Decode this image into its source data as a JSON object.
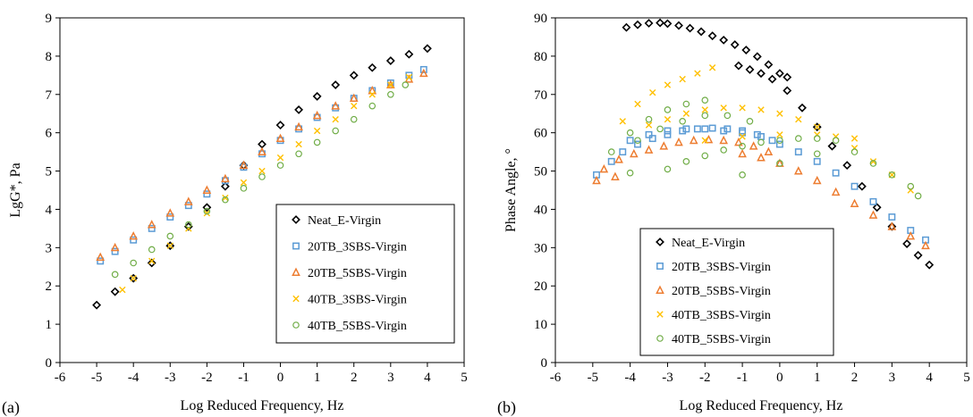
{
  "figure": {
    "background": "#ffffff",
    "series_styles": [
      {
        "name": "Neat_E-Virgin",
        "marker": "diamond",
        "color": "#000000"
      },
      {
        "name": "20TB_3SBS-Virgin",
        "marker": "square",
        "color": "#5B9BD5"
      },
      {
        "name": "20TB_5SBS-Virgin",
        "marker": "triangle",
        "color": "#ED7D31"
      },
      {
        "name": "40TB_3SBS-Virgin",
        "marker": "x",
        "color": "#FFC000"
      },
      {
        "name": "40TB_5SBS-Virgin",
        "marker": "circle",
        "color": "#70AD47"
      }
    ]
  },
  "chart_data": [
    {
      "type": "scatter",
      "panel_label": "(a)",
      "xlabel": "Log Reduced Frequency, Hz",
      "ylabel": "LgG*, Pa",
      "xlim": [
        -6,
        5
      ],
      "ylim": [
        0,
        9
      ],
      "xticks": [
        -6,
        -5,
        -4,
        -3,
        -2,
        -1,
        0,
        1,
        2,
        3,
        4,
        5
      ],
      "yticks": [
        0,
        1,
        2,
        3,
        4,
        5,
        6,
        7,
        8,
        9
      ],
      "grid": false,
      "legend_position": "bottom-right",
      "series": [
        {
          "name": "Neat_E-Virgin",
          "x": [
            -5.0,
            -4.5,
            -4.0,
            -3.5,
            -3.0,
            -2.5,
            -2.0,
            -1.5,
            -1.0,
            -0.5,
            0.0,
            0.5,
            1.0,
            1.5,
            2.0,
            2.5,
            3.0,
            3.5,
            4.0
          ],
          "y": [
            1.5,
            1.85,
            2.2,
            2.6,
            3.05,
            3.55,
            4.05,
            4.6,
            5.15,
            5.7,
            6.2,
            6.6,
            6.95,
            7.25,
            7.5,
            7.7,
            7.88,
            8.05,
            8.2
          ]
        },
        {
          "name": "20TB_3SBS-Virgin",
          "x": [
            -4.9,
            -4.5,
            -4.0,
            -3.5,
            -3.0,
            -2.5,
            -2.0,
            -1.5,
            -1.0,
            -0.5,
            0.0,
            0.5,
            1.0,
            1.5,
            2.0,
            2.5,
            3.0,
            3.5,
            3.9
          ],
          "y": [
            2.65,
            2.9,
            3.2,
            3.5,
            3.8,
            4.1,
            4.4,
            4.75,
            5.1,
            5.45,
            5.8,
            6.1,
            6.4,
            6.65,
            6.9,
            7.1,
            7.3,
            7.5,
            7.65
          ]
        },
        {
          "name": "20TB_5SBS-Virgin",
          "x": [
            -4.9,
            -4.5,
            -4.0,
            -3.5,
            -3.0,
            -2.5,
            -2.0,
            -1.5,
            -1.0,
            -0.5,
            0.0,
            0.5,
            1.0,
            1.5,
            2.0,
            2.5,
            3.0,
            3.5,
            3.9
          ],
          "y": [
            2.75,
            3.0,
            3.3,
            3.6,
            3.9,
            4.2,
            4.5,
            4.8,
            5.15,
            5.5,
            5.85,
            6.15,
            6.45,
            6.7,
            6.9,
            7.1,
            7.25,
            7.4,
            7.55
          ]
        },
        {
          "name": "40TB_3SBS-Virgin",
          "x": [
            -4.3,
            -4.0,
            -3.5,
            -3.0,
            -2.5,
            -2.0,
            -1.5,
            -1.0,
            -0.5,
            0.0,
            0.5,
            1.0,
            1.5,
            2.0,
            2.5,
            3.0,
            3.5
          ],
          "y": [
            1.9,
            2.2,
            2.65,
            3.05,
            3.5,
            3.9,
            4.3,
            4.7,
            5.0,
            5.35,
            5.7,
            6.05,
            6.35,
            6.7,
            7.0,
            7.25,
            7.45
          ]
        },
        {
          "name": "40TB_5SBS-Virgin",
          "x": [
            -4.5,
            -4.0,
            -3.5,
            -3.0,
            -2.5,
            -2.0,
            -1.5,
            -1.0,
            -0.5,
            0.0,
            0.5,
            1.0,
            1.5,
            2.0,
            2.5,
            3.0,
            3.4
          ],
          "y": [
            2.3,
            2.6,
            2.95,
            3.3,
            3.6,
            3.95,
            4.25,
            4.55,
            4.85,
            5.15,
            5.45,
            5.75,
            6.05,
            6.35,
            6.7,
            7.0,
            7.25
          ]
        }
      ]
    },
    {
      "type": "scatter",
      "panel_label": "(b)",
      "xlabel": "Log Reduced Frequency, Hz",
      "ylabel": "Phase Angle, °",
      "xlim": [
        -6,
        5
      ],
      "ylim": [
        0,
        90
      ],
      "xticks": [
        -6,
        -5,
        -4,
        -3,
        -2,
        -1,
        0,
        1,
        2,
        3,
        4,
        5
      ],
      "yticks": [
        0,
        10,
        20,
        30,
        40,
        50,
        60,
        70,
        80,
        90
      ],
      "grid": false,
      "legend_position": "bottom-left",
      "series": [
        {
          "name": "Neat_E-Virgin",
          "x": [
            -4.1,
            -3.8,
            -3.5,
            -3.2,
            -3.0,
            -2.7,
            -2.4,
            -2.1,
            -1.8,
            -1.5,
            -1.2,
            -0.9,
            -0.6,
            -0.3,
            0.0,
            0.2,
            -1.1,
            -0.8,
            -0.5,
            -0.2,
            0.2,
            0.6,
            1.0,
            1.4,
            1.8,
            2.2,
            2.6,
            3.0,
            3.4,
            3.7,
            4.0
          ],
          "y": [
            87.5,
            88.2,
            88.6,
            88.7,
            88.5,
            88.0,
            87.3,
            86.4,
            85.3,
            84.2,
            83.0,
            81.6,
            79.9,
            77.8,
            75.5,
            74.5,
            77.5,
            76.5,
            75.5,
            74.0,
            71.0,
            66.5,
            61.5,
            56.5,
            51.5,
            46.0,
            40.5,
            35.5,
            31.0,
            28.0,
            25.5
          ]
        },
        {
          "name": "20TB_3SBS-Virgin",
          "x": [
            -4.9,
            -4.5,
            -4.2,
            -3.8,
            -3.4,
            -3.0,
            -2.6,
            -2.2,
            -1.8,
            -1.4,
            -1.0,
            -0.6,
            -0.2,
            -4.0,
            -3.5,
            -3.0,
            -2.5,
            -2.0,
            -1.5,
            -1.0,
            -0.5,
            0.0,
            0.5,
            1.0,
            1.5,
            2.0,
            2.5,
            3.0,
            3.5,
            3.9
          ],
          "y": [
            49.0,
            52.5,
            55.0,
            57.0,
            58.5,
            59.5,
            60.5,
            61.0,
            61.2,
            61.0,
            60.5,
            59.5,
            58.0,
            58.0,
            59.5,
            60.5,
            61.0,
            61.0,
            60.5,
            60.0,
            59.0,
            57.0,
            55.0,
            52.5,
            49.5,
            46.0,
            42.0,
            38.0,
            34.5,
            32.0
          ]
        },
        {
          "name": "20TB_5SBS-Virgin",
          "x": [
            -4.9,
            -4.4,
            -4.7,
            -4.3,
            -3.9,
            -3.5,
            -3.1,
            -2.7,
            -2.3,
            -1.9,
            -1.5,
            -1.1,
            -0.7,
            -0.3,
            -1.0,
            -0.5,
            0.0,
            0.5,
            1.0,
            1.5,
            2.0,
            2.5,
            3.0,
            3.5,
            3.9
          ],
          "y": [
            47.5,
            48.5,
            50.5,
            53.0,
            54.5,
            55.5,
            56.5,
            57.5,
            58.0,
            58.2,
            58.0,
            57.5,
            56.5,
            55.0,
            54.5,
            53.5,
            52.0,
            50.0,
            47.5,
            44.5,
            41.5,
            38.5,
            35.5,
            33.0,
            30.5
          ]
        },
        {
          "name": "40TB_3SBS-Virgin",
          "x": [
            -4.2,
            -3.8,
            -3.4,
            -3.0,
            -2.6,
            -2.2,
            -1.8,
            -3.5,
            -3.0,
            -2.5,
            -2.0,
            -1.5,
            -1.0,
            -0.5,
            0.0,
            0.5,
            1.0,
            1.5,
            2.0,
            2.5,
            3.0,
            3.5,
            -2.0,
            -1.0,
            0.0,
            1.0,
            2.0
          ],
          "y": [
            63.0,
            67.5,
            70.5,
            72.5,
            74.0,
            75.5,
            77.0,
            62.0,
            63.5,
            65.0,
            66.0,
            66.5,
            66.5,
            66.0,
            65.0,
            63.5,
            61.5,
            59.0,
            56.0,
            52.5,
            49.0,
            45.0,
            58.0,
            59.0,
            59.5,
            59.5,
            58.5
          ]
        },
        {
          "name": "40TB_5SBS-Virgin",
          "x": [
            -4.5,
            -4.0,
            -3.5,
            -3.0,
            -2.5,
            -2.0,
            -3.8,
            -3.2,
            -2.6,
            -2.0,
            -1.4,
            -0.8,
            -3.0,
            -2.5,
            -2.0,
            -1.5,
            -1.0,
            -0.5,
            0.0,
            0.5,
            1.0,
            1.5,
            2.0,
            2.5,
            3.0,
            3.5,
            3.7,
            -1.0,
            0.0,
            1.0,
            -4.0
          ],
          "y": [
            55.0,
            60.0,
            63.5,
            66.0,
            67.5,
            68.5,
            58.0,
            61.0,
            63.0,
            64.5,
            64.5,
            63.0,
            50.5,
            52.5,
            54.0,
            55.5,
            56.5,
            57.5,
            58.0,
            58.5,
            58.5,
            58.0,
            55.0,
            52.0,
            49.0,
            46.0,
            43.5,
            49.0,
            52.0,
            54.5,
            49.5
          ]
        }
      ]
    }
  ]
}
